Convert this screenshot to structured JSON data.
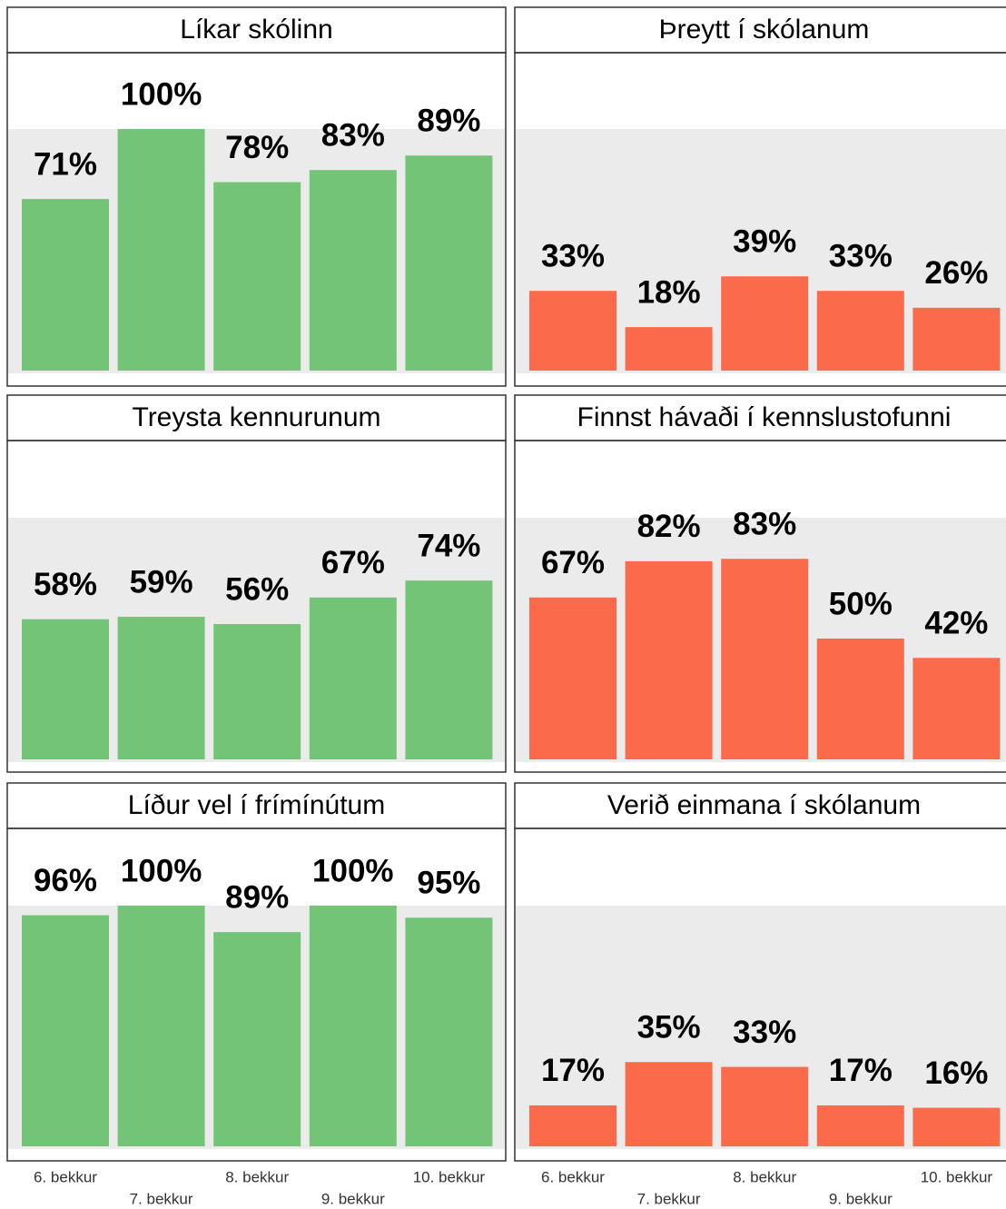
{
  "chart_data": [
    {
      "type": "bar",
      "title": "Líkar skólinn",
      "values": [
        71,
        100,
        78,
        83,
        89
      ],
      "value_labels": [
        "71%",
        "100%",
        "78%",
        "83%",
        "89%"
      ],
      "color": "#73c476",
      "ylim": [
        0,
        100
      ]
    },
    {
      "type": "bar",
      "title": "Þreytt í skólanum",
      "values": [
        33,
        18,
        39,
        33,
        26
      ],
      "value_labels": [
        "33%",
        "18%",
        "39%",
        "33%",
        "26%"
      ],
      "color": "#fb6a4a",
      "ylim": [
        0,
        100
      ]
    },
    {
      "type": "bar",
      "title": "Treysta kennurunum",
      "values": [
        58,
        59,
        56,
        67,
        74
      ],
      "value_labels": [
        "58%",
        "59%",
        "56%",
        "67%",
        "74%"
      ],
      "color": "#73c476",
      "ylim": [
        0,
        100
      ]
    },
    {
      "type": "bar",
      "title": "Finnst hávaði í kennslustofunni",
      "values": [
        67,
        82,
        83,
        50,
        42
      ],
      "value_labels": [
        "67%",
        "82%",
        "83%",
        "50%",
        "42%"
      ],
      "color": "#fb6a4a",
      "ylim": [
        0,
        100
      ]
    },
    {
      "type": "bar",
      "title": "Líður vel í frímínútum",
      "categories": [
        "6. bekkur",
        "7. bekkur",
        "8. bekkur",
        "9. bekkur",
        "10. bekkur"
      ],
      "values": [
        96,
        100,
        89,
        100,
        95
      ],
      "value_labels": [
        "96%",
        "100%",
        "89%",
        "100%",
        "95%"
      ],
      "color": "#73c476",
      "ylim": [
        0,
        100
      ]
    },
    {
      "type": "bar",
      "title": "Verið einmana í skólanum",
      "categories": [
        "6. bekkur",
        "7. bekkur",
        "8. bekkur",
        "9. bekkur",
        "10. bekkur"
      ],
      "values": [
        17,
        35,
        33,
        17,
        16
      ],
      "value_labels": [
        "17%",
        "35%",
        "33%",
        "17%",
        "16%"
      ],
      "color": "#fb6a4a",
      "ylim": [
        0,
        100
      ]
    }
  ]
}
